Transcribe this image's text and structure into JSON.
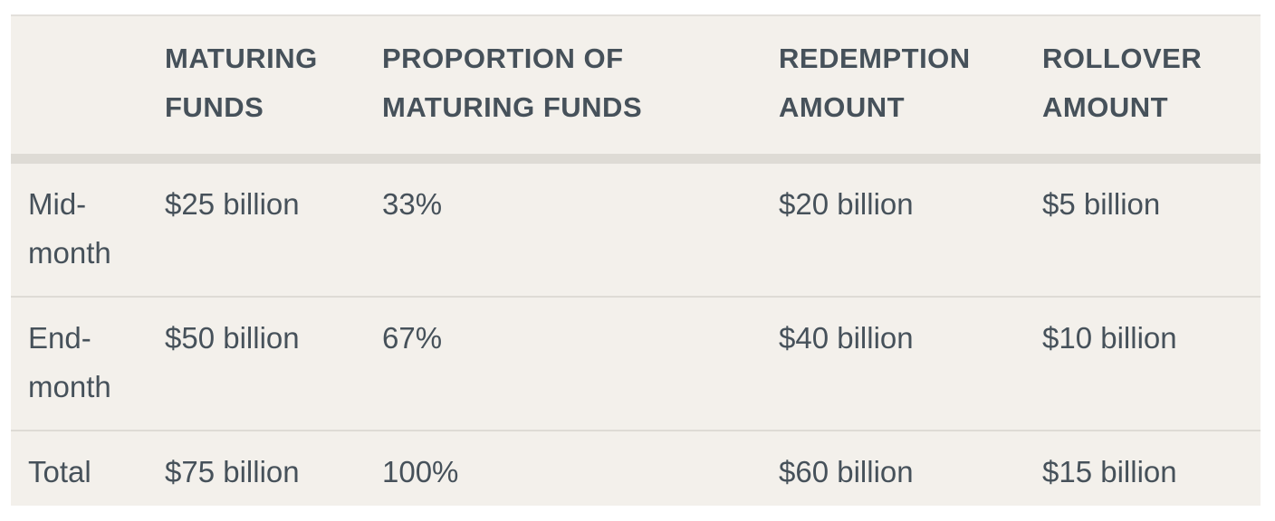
{
  "table": {
    "headers": [
      "",
      "MATURING FUNDS",
      "PROPORTION OF MATURING FUNDS",
      "REDEMPTION AMOUNT",
      "ROLLOVER AMOUNT"
    ],
    "rows": [
      [
        "Mid-month",
        "$25 billion",
        "33%",
        "$20 billion",
        "$5 billion"
      ],
      [
        "End-month",
        "$50 billion",
        "67%",
        "$40 billion",
        "$10 billion"
      ],
      [
        "Total",
        "$75 billion",
        "100%",
        "$60 billion",
        "$15 billion"
      ]
    ]
  }
}
